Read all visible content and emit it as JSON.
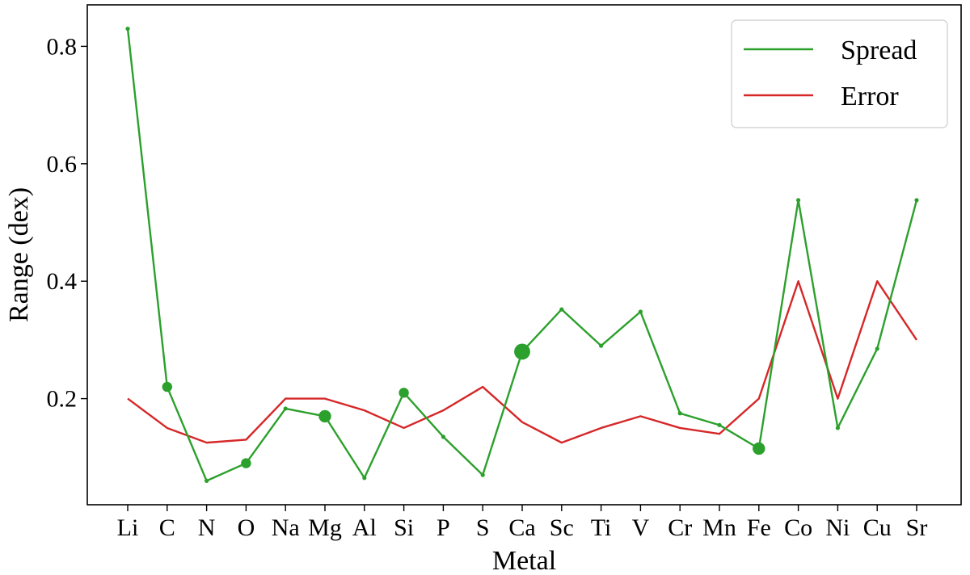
{
  "chart_data": {
    "type": "line",
    "xlabel": "Metal",
    "ylabel": "Range (dex)",
    "categories": [
      "Li",
      "C",
      "N",
      "O",
      "Na",
      "Mg",
      "Al",
      "Si",
      "P",
      "S",
      "Ca",
      "Sc",
      "Ti",
      "V",
      "Cr",
      "Mn",
      "Fe",
      "Co",
      "Ni",
      "Cu",
      "Sr"
    ],
    "ylim": [
      0.0,
      0.85
    ],
    "yticks": [
      "0.2",
      "0.4",
      "0.6",
      "0.8"
    ],
    "grid": false,
    "legend_position": "top-right",
    "series": [
      {
        "name": "Spread",
        "color": "#2ca02c",
        "values": [
          0.83,
          0.22,
          0.06,
          0.09,
          0.183,
          0.17,
          0.065,
          0.21,
          0.135,
          0.07,
          0.28,
          0.352,
          0.29,
          0.348,
          0.175,
          0.155,
          0.115,
          0.538,
          0.15,
          0.285,
          0.538
        ],
        "marker_sizes": [
          1,
          2,
          1,
          2,
          1,
          4,
          1,
          2,
          1,
          1,
          8,
          1,
          1,
          1,
          1,
          1,
          4,
          1,
          1,
          1,
          1
        ]
      },
      {
        "name": "Error",
        "color": "#d62728",
        "values": [
          0.2,
          0.15,
          0.125,
          0.13,
          0.2,
          0.2,
          0.18,
          0.15,
          0.18,
          0.22,
          0.16,
          0.125,
          0.15,
          0.17,
          0.15,
          0.14,
          0.2,
          0.4,
          0.2,
          0.4,
          0.3
        ]
      }
    ]
  }
}
